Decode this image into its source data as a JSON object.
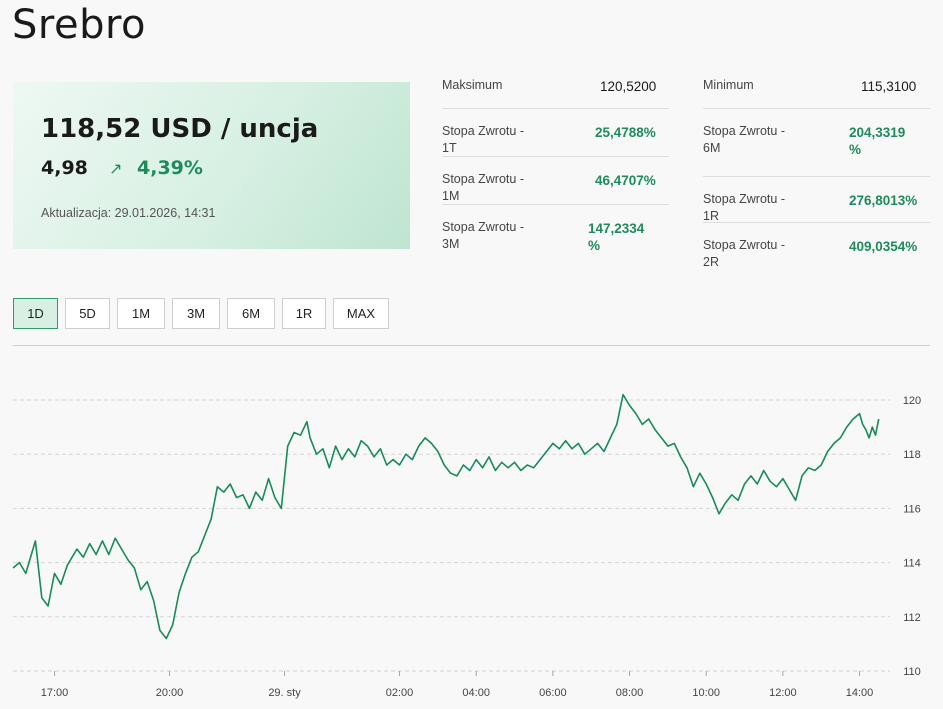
{
  "page": {
    "title": "Srebro"
  },
  "price": {
    "main": "118,52 USD / uncja",
    "change": "4,98",
    "arrow": "↗",
    "change_pct": "4,39%",
    "updated": "Aktualizacja: 29.01.2026, 14:31"
  },
  "stats_left": [
    {
      "label": "Maksimum",
      "value": "120,5200",
      "tone": "dark"
    },
    {
      "label": "Stopa Zwrotu - 1T",
      "value": "25,4788%",
      "tone": "green"
    },
    {
      "label": "Stopa Zwrotu - 1M",
      "value": "46,4707%",
      "tone": "green"
    },
    {
      "label": "Stopa Zwrotu - 3M",
      "value": "147,2334 %",
      "tone": "green"
    }
  ],
  "stats_right": [
    {
      "label": "Minimum",
      "value": "115,3100",
      "tone": "dark"
    },
    {
      "label": "Stopa Zwrotu - 6M",
      "value": "204,3319 %",
      "tone": "green"
    },
    {
      "label": "Stopa Zwrotu - 1R",
      "value": "276,8013%",
      "tone": "green"
    },
    {
      "label": "Stopa Zwrotu - 2R",
      "value": "409,0354%",
      "tone": "green"
    }
  ],
  "ranges": [
    {
      "label": "1D",
      "active": true
    },
    {
      "label": "5D",
      "active": false
    },
    {
      "label": "1M",
      "active": false
    },
    {
      "label": "3M",
      "active": false
    },
    {
      "label": "6M",
      "active": false
    },
    {
      "label": "1R",
      "active": false
    },
    {
      "label": "MAX",
      "active": false
    }
  ],
  "colors": {
    "accent": "#1f8a5b",
    "line": "#1a8a5a"
  },
  "chart_data": {
    "type": "line",
    "title": "",
    "xlabel": "",
    "ylabel": "",
    "ylim": [
      110,
      120.5
    ],
    "y_ticks": [
      110,
      112,
      114,
      116,
      118,
      120
    ],
    "x_ticks": [
      "17:00",
      "20:00",
      "29. sty",
      "02:00",
      "04:00",
      "06:00",
      "08:00",
      "10:00",
      "12:00",
      "14:00"
    ],
    "grid": true,
    "series": [
      {
        "name": "",
        "points": [
          [
            "15:55",
            113.8
          ],
          [
            "16:05",
            114.0
          ],
          [
            "16:15",
            113.6
          ],
          [
            "16:30",
            114.8
          ],
          [
            "16:40",
            112.7
          ],
          [
            "16:50",
            112.4
          ],
          [
            "17:00",
            113.6
          ],
          [
            "17:10",
            113.2
          ],
          [
            "17:20",
            113.9
          ],
          [
            "17:35",
            114.5
          ],
          [
            "17:45",
            114.2
          ],
          [
            "17:55",
            114.7
          ],
          [
            "18:05",
            114.3
          ],
          [
            "18:15",
            114.8
          ],
          [
            "18:25",
            114.3
          ],
          [
            "18:35",
            114.9
          ],
          [
            "18:45",
            114.5
          ],
          [
            "18:55",
            114.1
          ],
          [
            "19:05",
            113.8
          ],
          [
            "19:15",
            113.0
          ],
          [
            "19:25",
            113.3
          ],
          [
            "19:35",
            112.6
          ],
          [
            "19:45",
            111.5
          ],
          [
            "19:55",
            111.2
          ],
          [
            "20:05",
            111.7
          ],
          [
            "20:15",
            112.9
          ],
          [
            "20:25",
            113.6
          ],
          [
            "20:35",
            114.2
          ],
          [
            "20:45",
            114.4
          ],
          [
            "20:55",
            115.0
          ],
          [
            "21:05",
            115.6
          ],
          [
            "21:15",
            116.8
          ],
          [
            "21:25",
            116.6
          ],
          [
            "21:35",
            116.9
          ],
          [
            "21:45",
            116.4
          ],
          [
            "21:55",
            116.5
          ],
          [
            "22:05",
            116.0
          ],
          [
            "22:15",
            116.6
          ],
          [
            "22:25",
            116.3
          ],
          [
            "22:35",
            117.1
          ],
          [
            "22:45",
            116.4
          ],
          [
            "22:55",
            116.0
          ],
          [
            "23:05",
            118.3
          ],
          [
            "23:15",
            118.8
          ],
          [
            "23:25",
            118.7
          ],
          [
            "23:35",
            119.2
          ],
          [
            "23:40",
            118.6
          ],
          [
            "23:50",
            118.0
          ],
          [
            "00:00",
            118.2
          ],
          [
            "00:10",
            117.5
          ],
          [
            "00:20",
            118.3
          ],
          [
            "00:30",
            117.8
          ],
          [
            "00:40",
            118.2
          ],
          [
            "00:50",
            117.9
          ],
          [
            "01:00",
            118.5
          ],
          [
            "01:10",
            118.3
          ],
          [
            "01:20",
            117.9
          ],
          [
            "01:30",
            118.2
          ],
          [
            "01:40",
            117.6
          ],
          [
            "01:50",
            117.8
          ],
          [
            "02:00",
            117.6
          ],
          [
            "02:10",
            118.0
          ],
          [
            "02:20",
            117.8
          ],
          [
            "02:30",
            118.3
          ],
          [
            "02:40",
            118.6
          ],
          [
            "02:50",
            118.4
          ],
          [
            "03:00",
            118.1
          ],
          [
            "03:10",
            117.6
          ],
          [
            "03:20",
            117.3
          ],
          [
            "03:30",
            117.2
          ],
          [
            "03:40",
            117.6
          ],
          [
            "03:50",
            117.4
          ],
          [
            "04:00",
            117.8
          ],
          [
            "04:10",
            117.5
          ],
          [
            "04:20",
            117.9
          ],
          [
            "04:30",
            117.4
          ],
          [
            "04:40",
            117.7
          ],
          [
            "04:50",
            117.5
          ],
          [
            "05:00",
            117.7
          ],
          [
            "05:10",
            117.4
          ],
          [
            "05:20",
            117.6
          ],
          [
            "05:30",
            117.5
          ],
          [
            "05:40",
            117.8
          ],
          [
            "05:50",
            118.1
          ],
          [
            "06:00",
            118.4
          ],
          [
            "06:10",
            118.2
          ],
          [
            "06:20",
            118.5
          ],
          [
            "06:30",
            118.2
          ],
          [
            "06:40",
            118.4
          ],
          [
            "06:50",
            118.0
          ],
          [
            "07:00",
            118.2
          ],
          [
            "07:10",
            118.4
          ],
          [
            "07:20",
            118.1
          ],
          [
            "07:30",
            118.6
          ],
          [
            "07:40",
            119.1
          ],
          [
            "07:50",
            120.2
          ],
          [
            "08:00",
            119.8
          ],
          [
            "08:10",
            119.5
          ],
          [
            "08:20",
            119.1
          ],
          [
            "08:30",
            119.3
          ],
          [
            "08:40",
            118.9
          ],
          [
            "08:50",
            118.6
          ],
          [
            "09:00",
            118.3
          ],
          [
            "09:10",
            118.4
          ],
          [
            "09:20",
            117.9
          ],
          [
            "09:30",
            117.5
          ],
          [
            "09:40",
            116.8
          ],
          [
            "09:50",
            117.3
          ],
          [
            "10:00",
            116.9
          ],
          [
            "10:10",
            116.4
          ],
          [
            "10:20",
            115.8
          ],
          [
            "10:30",
            116.2
          ],
          [
            "10:40",
            116.5
          ],
          [
            "10:50",
            116.3
          ],
          [
            "11:00",
            116.9
          ],
          [
            "11:10",
            117.2
          ],
          [
            "11:20",
            116.9
          ],
          [
            "11:30",
            117.4
          ],
          [
            "11:40",
            117.0
          ],
          [
            "11:50",
            116.8
          ],
          [
            "12:00",
            117.1
          ],
          [
            "12:10",
            116.7
          ],
          [
            "12:20",
            116.3
          ],
          [
            "12:30",
            117.2
          ],
          [
            "12:40",
            117.5
          ],
          [
            "12:50",
            117.4
          ],
          [
            "13:00",
            117.6
          ],
          [
            "13:10",
            118.1
          ],
          [
            "13:20",
            118.4
          ],
          [
            "13:30",
            118.6
          ],
          [
            "13:40",
            119.0
          ],
          [
            "13:50",
            119.3
          ],
          [
            "14:00",
            119.5
          ],
          [
            "14:05",
            119.1
          ],
          [
            "14:10",
            118.9
          ],
          [
            "14:15",
            118.6
          ],
          [
            "14:20",
            119.0
          ],
          [
            "14:25",
            118.7
          ],
          [
            "14:30",
            119.3
          ]
        ]
      }
    ]
  }
}
